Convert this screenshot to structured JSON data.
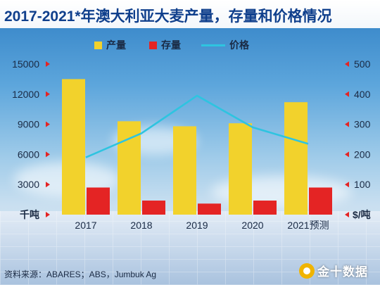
{
  "title": "2017-2021*年澳大利亚大麦产量，存量和价格情况",
  "source": "资料来源：ABARES；ABS，Jumbuk Ag",
  "logo_text": "金十数据",
  "colors": {
    "production": "#f2d22c",
    "stock": "#e42424",
    "price": "#2ec4e0",
    "marker": "#e42424",
    "title": "#0f3f8c"
  },
  "chart_data": {
    "type": "bar",
    "title": "2017-2021*年澳大利亚大麦产量，存量和价格情况",
    "categories": [
      "2017",
      "2018",
      "2019",
      "2020",
      "2021预测"
    ],
    "series": [
      {
        "name": "产量",
        "type": "bar",
        "axis": "left",
        "values": [
          13500,
          9300,
          8800,
          9100,
          11200
        ]
      },
      {
        "name": "存量",
        "type": "bar",
        "axis": "left",
        "values": [
          2700,
          1400,
          1100,
          1400,
          2700
        ]
      },
      {
        "name": "价格",
        "type": "line",
        "axis": "right",
        "values": [
          190,
          270,
          395,
          290,
          235
        ]
      }
    ],
    "left_axis": {
      "unit": "千吨",
      "ylim": [
        0,
        15000
      ],
      "ticks": [
        "15000",
        "12000",
        "9000",
        "6000",
        "3000"
      ]
    },
    "right_axis": {
      "unit": "$/吨",
      "ylim": [
        0,
        500
      ],
      "ticks": [
        "500",
        "400",
        "300",
        "200",
        "100"
      ]
    },
    "legend_position": "top-center",
    "grid": false
  }
}
